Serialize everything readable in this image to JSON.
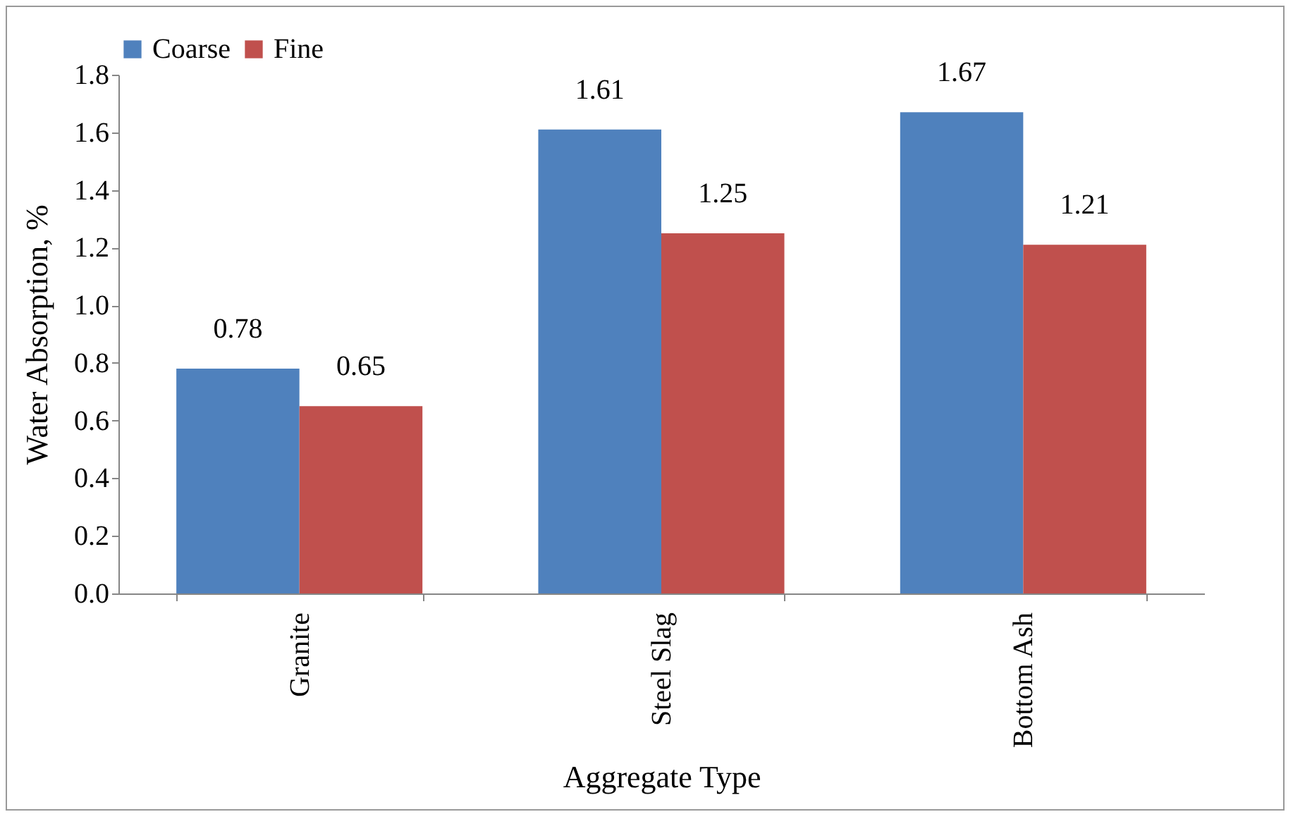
{
  "chart_data": {
    "type": "bar",
    "xlabel": "Aggregate Type",
    "ylabel": "Water Absorption, %",
    "categories": [
      "Granite",
      "Steel Slag",
      "Bottom Ash"
    ],
    "series": [
      {
        "name": "Coarse",
        "color": "#4f81bd",
        "values": [
          0.78,
          1.61,
          1.67
        ]
      },
      {
        "name": "Fine",
        "color": "#c0504d",
        "values": [
          0.65,
          1.25,
          1.21
        ]
      }
    ],
    "ylim": [
      0,
      1.8
    ],
    "yticks": [
      {
        "value": 0,
        "label": "0.0"
      },
      {
        "value": 0.2,
        "label": "0.2"
      },
      {
        "value": 0.4,
        "label": "0.4"
      },
      {
        "value": 0.6,
        "label": "0.6"
      },
      {
        "value": 0.8,
        "label": "0.8"
      },
      {
        "value": 1,
        "label": "1.0"
      },
      {
        "value": 1.2,
        "label": "1.2"
      },
      {
        "value": 1.4,
        "label": "1.4"
      },
      {
        "value": 1.6,
        "label": "1.6"
      },
      {
        "value": 1.8,
        "label": "1.8"
      }
    ],
    "grid": false,
    "legend": "top",
    "data_labels": true
  }
}
